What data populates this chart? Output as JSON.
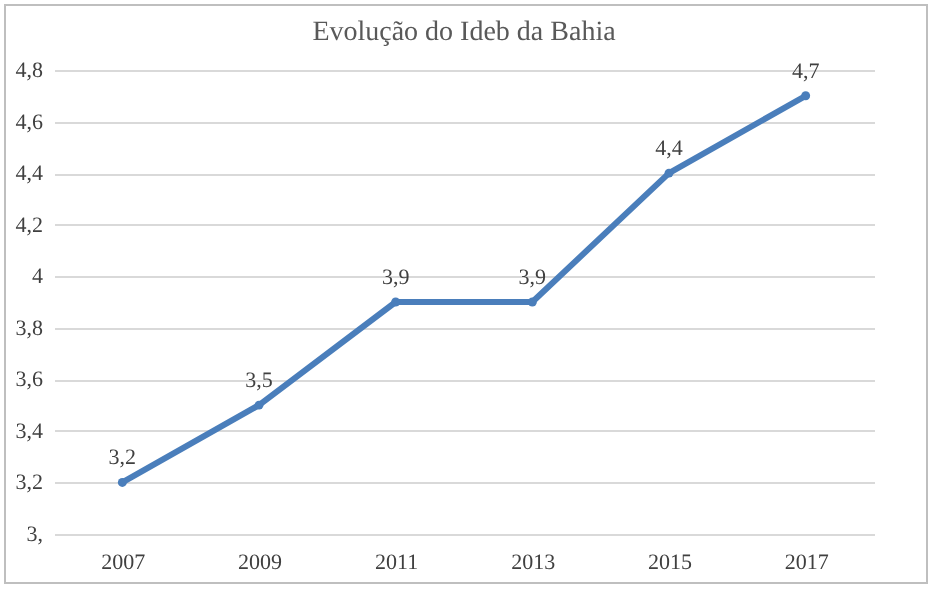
{
  "chart_data": {
    "type": "line",
    "title": "Evolução do Ideb da Bahia",
    "categories": [
      "2007",
      "2009",
      "2011",
      "2013",
      "2015",
      "2017"
    ],
    "series": [
      {
        "color": "#4a7ebb",
        "values": [
          3.2,
          3.5,
          3.9,
          3.9,
          4.4,
          4.7
        ]
      }
    ],
    "value_labels": [
      "3,2",
      "3,5",
      "3,9",
      "3,9",
      "4,4",
      "4,7"
    ],
    "ylim": [
      3,
      4.8
    ],
    "yticks": [
      {
        "value": 3,
        "label": "3,"
      },
      {
        "value": 3.2,
        "label": "3,2"
      },
      {
        "value": 3.4,
        "label": "3,4"
      },
      {
        "value": 3.6,
        "label": "3,6"
      },
      {
        "value": 3.8,
        "label": "3,8"
      },
      {
        "value": 4,
        "label": "4"
      },
      {
        "value": 4.2,
        "label": "4,2"
      },
      {
        "value": 4.4,
        "label": "4,4"
      },
      {
        "value": 4.6,
        "label": "4,6"
      },
      {
        "value": 4.8,
        "label": "4,8"
      }
    ],
    "grid": "y",
    "marker": "circle",
    "line_style": "solid"
  }
}
